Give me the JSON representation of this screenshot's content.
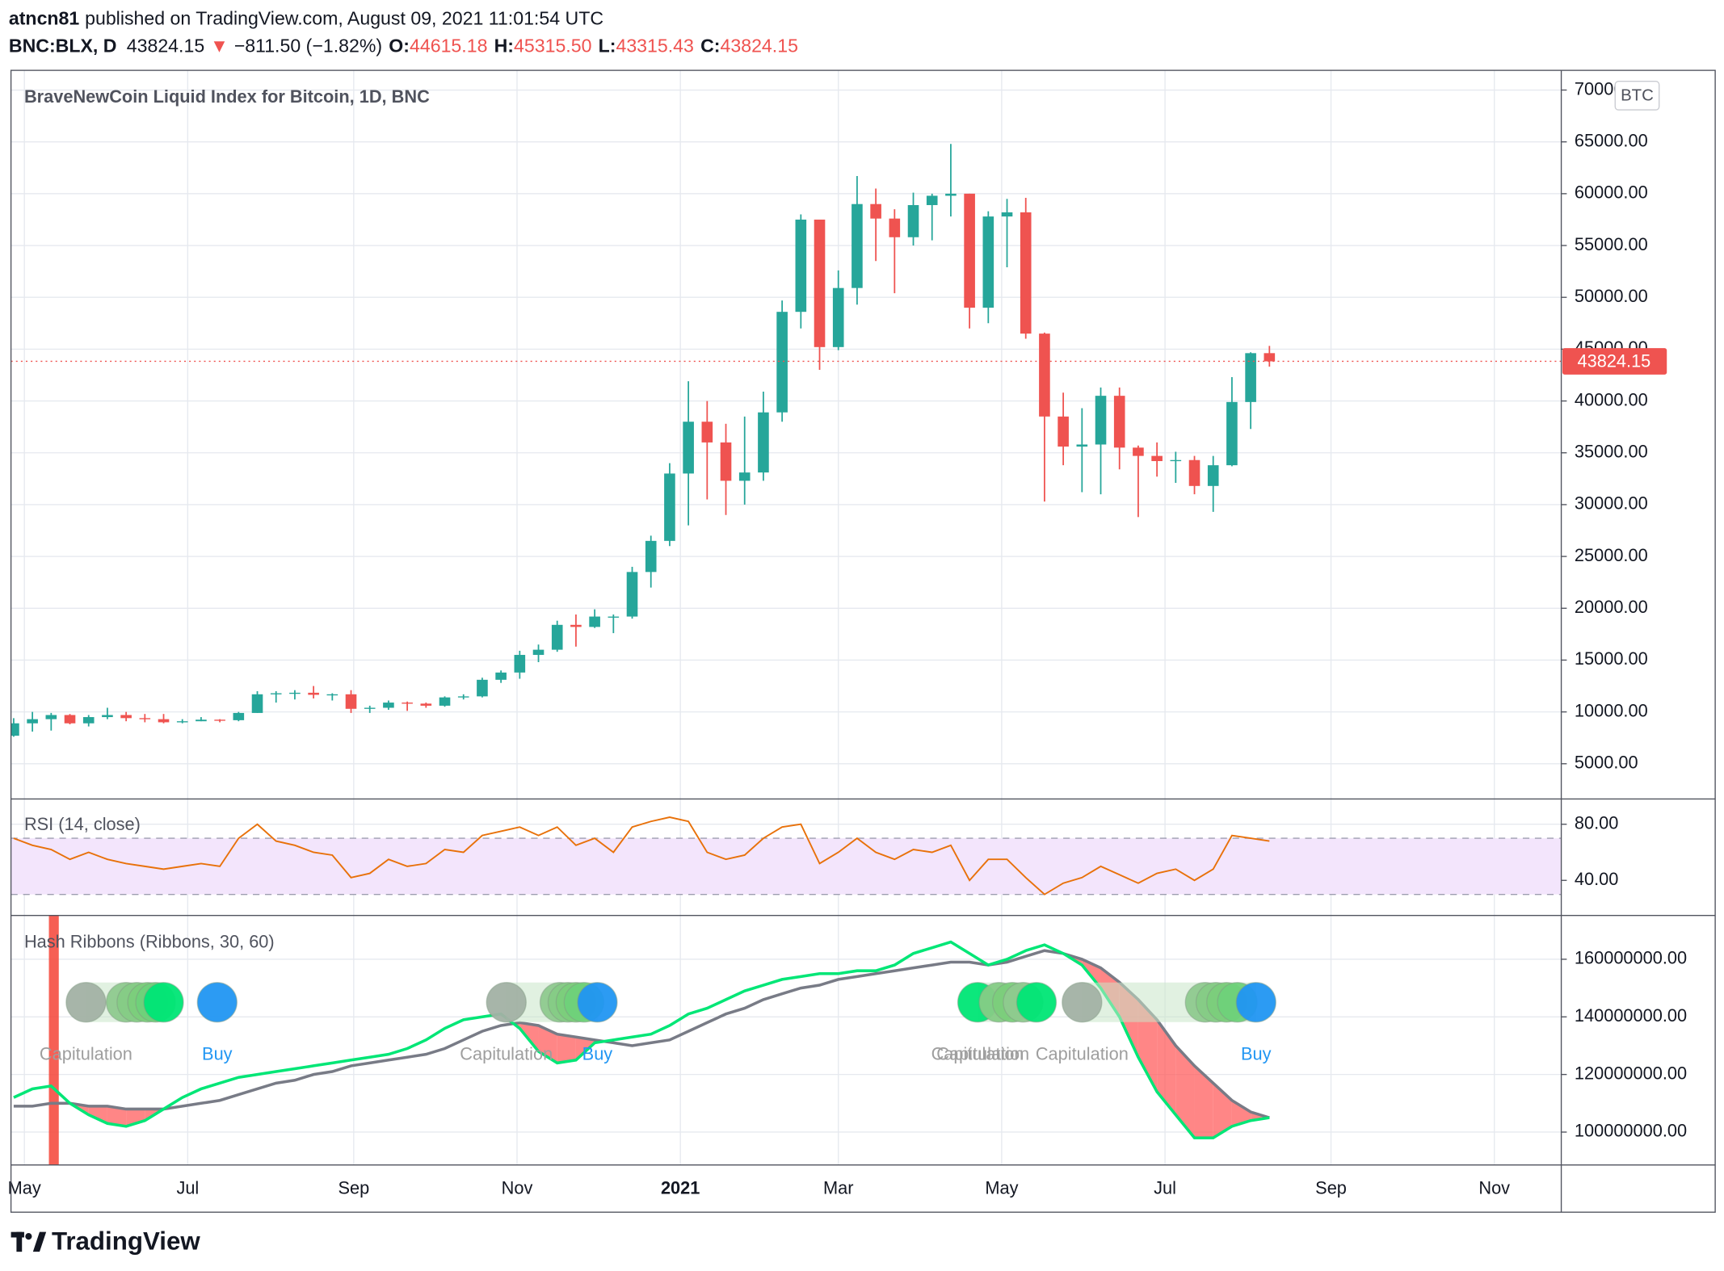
{
  "header": {
    "publisher": "atncn81",
    "published": "published on TradingView.com, August 09, 2021 11:01:54 UTC",
    "symbol": "BNC:BLX, D",
    "price": "43824.15",
    "arrow": "▼",
    "change": "−811.50 (−1.82%)",
    "open_key": "O:",
    "open": "44615.18",
    "high_key": "H:",
    "high": "45315.50",
    "low_key": "L:",
    "low": "43315.43",
    "close_key": "C:",
    "close": "43824.15"
  },
  "brand": "TradingView",
  "chart_data": {
    "type": "candlestick",
    "title": "BraveNewCoin Liquid Index for Bitcoin, 1D, BNC",
    "currency": "BTC",
    "up_color": "#26a69a",
    "down_color": "#ef5350",
    "x": [
      "2020-04-27",
      "2020-05-04",
      "2020-05-11",
      "2020-05-18",
      "2020-05-25",
      "2020-06-01",
      "2020-06-08",
      "2020-06-15",
      "2020-06-22",
      "2020-06-29",
      "2020-07-06",
      "2020-07-13",
      "2020-07-20",
      "2020-07-27",
      "2020-08-03",
      "2020-08-10",
      "2020-08-17",
      "2020-08-24",
      "2020-08-31",
      "2020-09-07",
      "2020-09-14",
      "2020-09-21",
      "2020-09-28",
      "2020-10-05",
      "2020-10-12",
      "2020-10-19",
      "2020-10-26",
      "2020-11-02",
      "2020-11-09",
      "2020-11-16",
      "2020-11-23",
      "2020-11-30",
      "2020-12-07",
      "2020-12-14",
      "2020-12-21",
      "2020-12-28",
      "2021-01-04",
      "2021-01-11",
      "2021-01-18",
      "2021-01-25",
      "2021-02-01",
      "2021-02-08",
      "2021-02-15",
      "2021-02-22",
      "2021-03-01",
      "2021-03-08",
      "2021-03-15",
      "2021-03-22",
      "2021-03-29",
      "2021-04-05",
      "2021-04-12",
      "2021-04-19",
      "2021-04-26",
      "2021-05-03",
      "2021-05-10",
      "2021-05-17",
      "2021-05-24",
      "2021-05-31",
      "2021-06-07",
      "2021-06-14",
      "2021-06-21",
      "2021-06-28",
      "2021-07-05",
      "2021-07-12",
      "2021-07-19",
      "2021-07-26",
      "2021-08-02",
      "2021-08-09"
    ],
    "open": [
      7700,
      8900,
      9300,
      9700,
      8900,
      9500,
      9700,
      9400,
      9300,
      9000,
      9100,
      9250,
      9200,
      9900,
      11700,
      11800,
      11850,
      11650,
      11700,
      10300,
      10400,
      10900,
      10800,
      10600,
      11400,
      11500,
      13100,
      13800,
      15500,
      16000,
      18400,
      18200,
      19200,
      19200,
      23500,
      26500,
      33000,
      38000,
      36000,
      32300,
      33100,
      38900,
      48600,
      57500,
      45200,
      50900,
      59000,
      57600,
      55800,
      58900,
      59800,
      60000,
      49000,
      57800,
      58200,
      46500,
      38500,
      35600,
      35800,
      40500,
      35500,
      34700,
      34200,
      34300,
      31800,
      33800,
      39900,
      44615.18
    ],
    "high": [
      9400,
      10000,
      9900,
      9800,
      9700,
      10400,
      10000,
      9800,
      9800,
      9300,
      9500,
      9300,
      10000,
      12000,
      12000,
      12100,
      12500,
      11800,
      12100,
      10600,
      11100,
      11000,
      10900,
      11500,
      11700,
      13300,
      14000,
      15900,
      16500,
      18800,
      19400,
      19900,
      19400,
      24000,
      27000,
      34000,
      41900,
      40000,
      37800,
      38500,
      40900,
      49700,
      58000,
      57500,
      52600,
      61700,
      60500,
      58500,
      60100,
      60000,
      64800,
      60000,
      58300,
      59500,
      59600,
      46600,
      40800,
      39300,
      41300,
      41300,
      35700,
      36000,
      35100,
      34700,
      34700,
      42300,
      44700,
      45315.5
    ],
    "low": [
      7600,
      8100,
      8200,
      8800,
      8600,
      9300,
      9100,
      9000,
      8900,
      8900,
      9100,
      9000,
      9100,
      9900,
      10900,
      11200,
      11300,
      11100,
      9900,
      9900,
      10200,
      10100,
      10400,
      10500,
      11200,
      11400,
      12800,
      13200,
      14800,
      15800,
      16300,
      18100,
      17600,
      19000,
      22000,
      26000,
      28000,
      30500,
      29000,
      30000,
      32300,
      38000,
      47000,
      43000,
      44900,
      49300,
      53500,
      50400,
      55000,
      55500,
      57800,
      47000,
      47500,
      52900,
      46000,
      30300,
      33800,
      31200,
      31000,
      33400,
      28800,
      32700,
      32100,
      31000,
      29300,
      33700,
      37300,
      43315.43
    ],
    "close": [
      8900,
      9300,
      9700,
      8900,
      9500,
      9700,
      9400,
      9300,
      9000,
      9100,
      9250,
      9200,
      9900,
      11700,
      11800,
      11850,
      11650,
      11700,
      10300,
      10400,
      10900,
      10800,
      10600,
      11400,
      11500,
      13100,
      13800,
      15500,
      16000,
      18400,
      18200,
      19200,
      19200,
      23500,
      26500,
      33000,
      38000,
      36000,
      32300,
      33100,
      38900,
      48600,
      57500,
      45200,
      50900,
      59000,
      57600,
      55800,
      58900,
      59800,
      60000,
      49000,
      57800,
      58200,
      46500,
      38500,
      35600,
      35800,
      40500,
      35500,
      34700,
      34200,
      34300,
      31800,
      33800,
      39900,
      44615.18,
      43824.15
    ],
    "ylim": [
      1600,
      71900
    ],
    "yticks": [
      {
        "value": 5000,
        "label": "5000.00"
      },
      {
        "value": 10000,
        "label": "10000.00"
      },
      {
        "value": 15000,
        "label": "15000.00"
      },
      {
        "value": 20000,
        "label": "20000.00"
      },
      {
        "value": 25000,
        "label": "25000.00"
      },
      {
        "value": 30000,
        "label": "30000.00"
      },
      {
        "value": 35000,
        "label": "35000.00"
      },
      {
        "value": 40000,
        "label": "40000.00"
      },
      {
        "value": 45000,
        "label": "45000.00"
      },
      {
        "value": 50000,
        "label": "50000.00"
      },
      {
        "value": 55000,
        "label": "55000.00"
      },
      {
        "value": 60000,
        "label": "60000.00"
      },
      {
        "value": 65000,
        "label": "65000.00"
      },
      {
        "value": 70000,
        "label": "70000.00"
      }
    ],
    "xlim": [
      "2020-04-26",
      "2021-11-26"
    ],
    "xticks": [
      {
        "value": "2020-05-01",
        "label": "May"
      },
      {
        "value": "2020-07-01",
        "label": "Jul"
      },
      {
        "value": "2020-09-01",
        "label": "Sep"
      },
      {
        "value": "2020-11-01",
        "label": "Nov"
      },
      {
        "value": "2021-01-01",
        "label": "2021"
      },
      {
        "value": "2021-03-01",
        "label": "Mar"
      },
      {
        "value": "2021-05-01",
        "label": "May"
      },
      {
        "value": "2021-07-01",
        "label": "Jul"
      },
      {
        "value": "2021-09-01",
        "label": "Sep"
      },
      {
        "value": "2021-11-01",
        "label": "Nov"
      }
    ],
    "grid": true,
    "rsi": {
      "type": "line",
      "title": "RSI (14, close)",
      "color": "#e8710a",
      "values": [
        70,
        65,
        62,
        55,
        60,
        55,
        52,
        50,
        48,
        50,
        52,
        50,
        70,
        80,
        68,
        65,
        60,
        58,
        42,
        45,
        55,
        50,
        52,
        62,
        60,
        72,
        75,
        78,
        72,
        78,
        65,
        70,
        60,
        78,
        82,
        85,
        82,
        60,
        55,
        58,
        70,
        78,
        80,
        52,
        60,
        70,
        60,
        55,
        62,
        60,
        65,
        40,
        55,
        55,
        42,
        30,
        38,
        42,
        50,
        44,
        38,
        45,
        48,
        40,
        48,
        72,
        70,
        68
      ],
      "band": [
        30,
        70
      ],
      "band_color": "#f3e5fc",
      "ylim": [
        15,
        98
      ],
      "yticks": [
        {
          "value": 40,
          "label": "40.00"
        },
        {
          "value": 80,
          "label": "80.00"
        }
      ]
    },
    "hash_ribbons": {
      "type": "line",
      "title": "Hash Ribbons (Ribbons, 30, 60)",
      "series": [
        {
          "color": "#00e676",
          "values": [
            112000000.0,
            115000000.0,
            116000000.0,
            110000000.0,
            106000000.0,
            103000000.0,
            102000000.0,
            104000000.0,
            108000000.0,
            112000000.0,
            115000000.0,
            117000000.0,
            119000000.0,
            120000000.0,
            121000000.0,
            122000000.0,
            123000000.0,
            124000000.0,
            125000000.0,
            126000000.0,
            127000000.0,
            129000000.0,
            132000000.0,
            136000000.0,
            139000000.0,
            140000000.0,
            141000000.0,
            136000000.0,
            128000000.0,
            124000000.0,
            125000000.0,
            131000000.0,
            132000000.0,
            133000000.0,
            134000000.0,
            137000000.0,
            141000000.0,
            143000000.0,
            146000000.0,
            149000000.0,
            151000000.0,
            153000000.0,
            154000000.0,
            155000000.0,
            155000000.0,
            156000000.0,
            156000000.0,
            158000000.0,
            162000000.0,
            164000000.0,
            166000000.0,
            162000000.0,
            158000000.0,
            160000000.0,
            163000000.0,
            165000000.0,
            162000000.0,
            158000000.0,
            150000000.0,
            140000000.0,
            126000000.0,
            114000000.0,
            106000000.0,
            98000000.0,
            98000000.0,
            102000000.0,
            104000000.0,
            105000000.0
          ]
        },
        {
          "color": "#787b86",
          "values": [
            109000000.0,
            109000000.0,
            110000000.0,
            110000000.0,
            109000000.0,
            109000000.0,
            108000000.0,
            108000000.0,
            108000000.0,
            109000000.0,
            110000000.0,
            111000000.0,
            113000000.0,
            115000000.0,
            117000000.0,
            118000000.0,
            120000000.0,
            121000000.0,
            123000000.0,
            124000000.0,
            125000000.0,
            126000000.0,
            127000000.0,
            129000000.0,
            132000000.0,
            135000000.0,
            137000000.0,
            138000000.0,
            137000000.0,
            134000000.0,
            133000000.0,
            132000000.0,
            131000000.0,
            130000000.0,
            131000000.0,
            132000000.0,
            135000000.0,
            138000000.0,
            141000000.0,
            143000000.0,
            146000000.0,
            148000000.0,
            150000000.0,
            151000000.0,
            153000000.0,
            154000000.0,
            155000000.0,
            156000000.0,
            157000000.0,
            158000000.0,
            159000000.0,
            159000000.0,
            158000000.0,
            159000000.0,
            161000000.0,
            163000000.0,
            162000000.0,
            160000000.0,
            157000000.0,
            152000000.0,
            146000000.0,
            139000000.0,
            130000000.0,
            123000000.0,
            117000000.0,
            111000000.0,
            107000000.0,
            105000000.0
          ]
        }
      ],
      "fill_color": "#ff5252",
      "ylim": [
        88600000,
        175200000
      ],
      "yticks": [
        {
          "value": 100000000,
          "label": "100000000.00"
        },
        {
          "value": 120000000,
          "label": "120000000.00"
        },
        {
          "value": 140000000,
          "label": "140000000.00"
        },
        {
          "value": 160000000,
          "label": "160000000.00"
        }
      ],
      "highlight": {
        "x": "2020-05-12",
        "color": "#f44336"
      },
      "bands": [
        {
          "from": "2020-05-24",
          "to": "2020-06-22"
        },
        {
          "from": "2020-10-28",
          "to": "2020-12-01"
        },
        {
          "from": "2021-04-22",
          "to": "2021-05-14"
        },
        {
          "from": "2021-05-31",
          "to": "2021-08-04"
        }
      ],
      "band_color": "#c8e6c9",
      "circles": [
        {
          "x": "2020-05-24",
          "color": "#a3b2a5"
        },
        {
          "x": "2020-06-08",
          "color": "#8fcb8f"
        },
        {
          "x": "2020-06-12",
          "color": "#86cd86"
        },
        {
          "x": "2020-06-16",
          "color": "#7ccf7c"
        },
        {
          "x": "2020-06-19",
          "color": "#6fd27a"
        },
        {
          "x": "2020-06-22",
          "color": "#00e676"
        },
        {
          "x": "2020-07-12",
          "color": "#2196f3"
        },
        {
          "x": "2020-10-28",
          "color": "#a3b2a5"
        },
        {
          "x": "2020-11-17",
          "color": "#8fcb8f"
        },
        {
          "x": "2020-11-20",
          "color": "#86cd86"
        },
        {
          "x": "2020-11-23",
          "color": "#7ccf7c"
        },
        {
          "x": "2020-11-26",
          "color": "#6fd27a"
        },
        {
          "x": "2020-12-01",
          "color": "#2196f3"
        },
        {
          "x": "2021-04-22",
          "color": "#00e676"
        },
        {
          "x": "2021-04-30",
          "color": "#86cd86"
        },
        {
          "x": "2021-05-05",
          "color": "#7ccf7c"
        },
        {
          "x": "2021-05-09",
          "color": "#8fcb8f"
        },
        {
          "x": "2021-05-14",
          "color": "#00e676"
        },
        {
          "x": "2021-05-31",
          "color": "#a3b2a5"
        },
        {
          "x": "2021-07-16",
          "color": "#8fcb8f"
        },
        {
          "x": "2021-07-20",
          "color": "#86cd86"
        },
        {
          "x": "2021-07-24",
          "color": "#7ccf7c"
        },
        {
          "x": "2021-07-28",
          "color": "#6fd27a"
        },
        {
          "x": "2021-08-04",
          "color": "#2196f3"
        }
      ],
      "labels": [
        {
          "text": "Capitulation",
          "x": "2020-05-24",
          "color": "#9e9e9e"
        },
        {
          "text": "Buy",
          "x": "2020-07-12",
          "color": "#2196f3"
        },
        {
          "text": "Capitulation",
          "x": "2020-10-28",
          "color": "#9e9e9e"
        },
        {
          "text": "Buy",
          "x": "2020-12-01",
          "color": "#2196f3"
        },
        {
          "text": "Capitulation",
          "x": "2021-04-22",
          "color": "#9e9e9e"
        },
        {
          "text": "Capitulation",
          "x": "2021-04-24",
          "color": "#9e9e9e"
        },
        {
          "text": "Capitulation",
          "x": "2021-05-31",
          "color": "#9e9e9e"
        },
        {
          "text": "Buy",
          "x": "2021-08-04",
          "color": "#2196f3"
        }
      ]
    }
  }
}
